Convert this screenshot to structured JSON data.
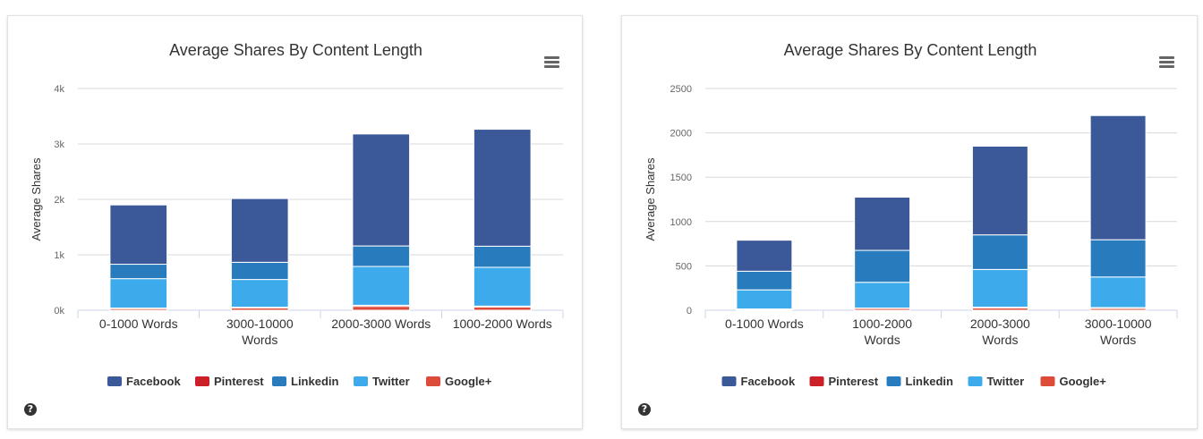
{
  "colors": {
    "Facebook": "#3b5998",
    "Pinterest": "#cb2027",
    "Linkedin": "#287bbc",
    "Twitter": "#3daaeb",
    "Google+": "#dd4b39"
  },
  "icons": {
    "menu": "hamburger-menu-icon",
    "help": "question-circle-icon"
  },
  "chart_data": [
    {
      "type": "bar",
      "stacked": true,
      "title": "Average Shares By Content Length",
      "ylabel": "Average Shares",
      "xlabel": "",
      "ylim": [
        0,
        4000
      ],
      "yticks": [
        0,
        1000,
        2000,
        3000,
        4000
      ],
      "ytick_labels": [
        "0k",
        "1k",
        "2k",
        "3k",
        "4k"
      ],
      "grid": true,
      "legend_position": "bottom",
      "categories": [
        [
          "0-1000 Words"
        ],
        [
          "3000-10000",
          "Words"
        ],
        [
          "2000-3000 Words"
        ],
        [
          "1000-2000 Words"
        ]
      ],
      "stack_order": [
        "Google+",
        "Pinterest",
        "Twitter",
        "Linkedin",
        "Facebook"
      ],
      "legend_order": [
        "Facebook",
        "Pinterest",
        "Linkedin",
        "Twitter",
        "Google+"
      ],
      "series": [
        {
          "name": "Facebook",
          "values": [
            1070,
            1150,
            2020,
            2110
          ]
        },
        {
          "name": "Pinterest",
          "values": [
            10,
            15,
            20,
            15
          ]
        },
        {
          "name": "Linkedin",
          "values": [
            260,
            310,
            370,
            380
          ]
        },
        {
          "name": "Twitter",
          "values": [
            530,
            500,
            700,
            700
          ]
        },
        {
          "name": "Google+",
          "values": [
            30,
            40,
            70,
            60
          ]
        }
      ]
    },
    {
      "type": "bar",
      "stacked": true,
      "title": "Average Shares By Content Length",
      "ylabel": "Average Shares",
      "xlabel": "",
      "ylim": [
        0,
        2500
      ],
      "yticks": [
        0,
        500,
        1000,
        1500,
        2000,
        2500
      ],
      "ytick_labels": [
        "0",
        "500",
        "1000",
        "1500",
        "2000",
        "2500"
      ],
      "grid": true,
      "legend_position": "bottom",
      "categories": [
        [
          "0-1000 Words"
        ],
        [
          "1000-2000",
          "Words"
        ],
        [
          "2000-3000",
          "Words"
        ],
        [
          "3000-10000",
          "Words"
        ]
      ],
      "stack_order": [
        "Google+",
        "Pinterest",
        "Twitter",
        "Linkedin",
        "Facebook"
      ],
      "legend_order": [
        "Facebook",
        "Pinterest",
        "Linkedin",
        "Twitter",
        "Google+"
      ],
      "series": [
        {
          "name": "Facebook",
          "values": [
            350,
            600,
            1000,
            1400
          ]
        },
        {
          "name": "Pinterest",
          "values": [
            5,
            5,
            10,
            10
          ]
        },
        {
          "name": "Linkedin",
          "values": [
            210,
            360,
            390,
            420
          ]
        },
        {
          "name": "Twitter",
          "values": [
            215,
            290,
            425,
            345
          ]
        },
        {
          "name": "Google+",
          "values": [
            10,
            20,
            25,
            20
          ]
        }
      ]
    }
  ]
}
